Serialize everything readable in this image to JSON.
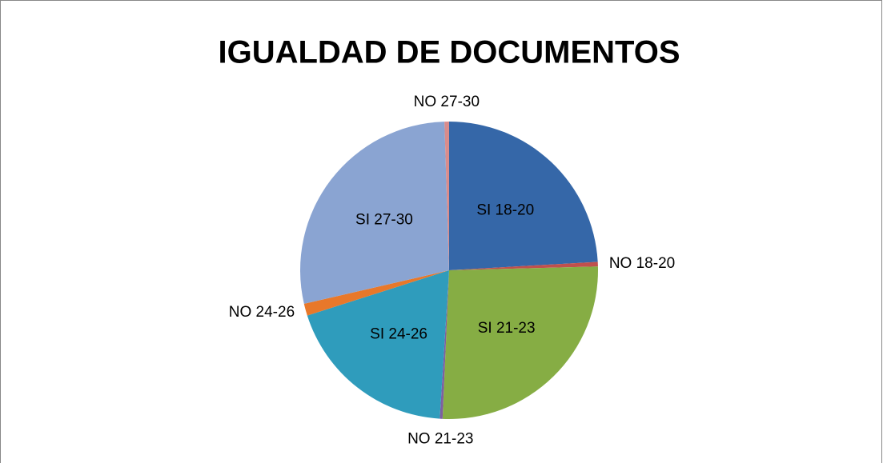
{
  "chart_data": {
    "type": "pie",
    "title": "IGUALDAD DE DOCUMENTOS",
    "categories": [
      "SI 18-20",
      "NO 18-20",
      "SI 21-23",
      "NO 21-23",
      "SI 24-26",
      "NO 24-26",
      "SI 27-30",
      "NO 27-30"
    ],
    "values": [
      24,
      0.5,
      26,
      0.3,
      19,
      1.3,
      28,
      0.5
    ],
    "colors": [
      "#3567a8",
      "#c0504d",
      "#86ad44",
      "#7e60a0",
      "#2f9cbc",
      "#e8782a",
      "#8aa4d2",
      "#d98c8c"
    ]
  }
}
